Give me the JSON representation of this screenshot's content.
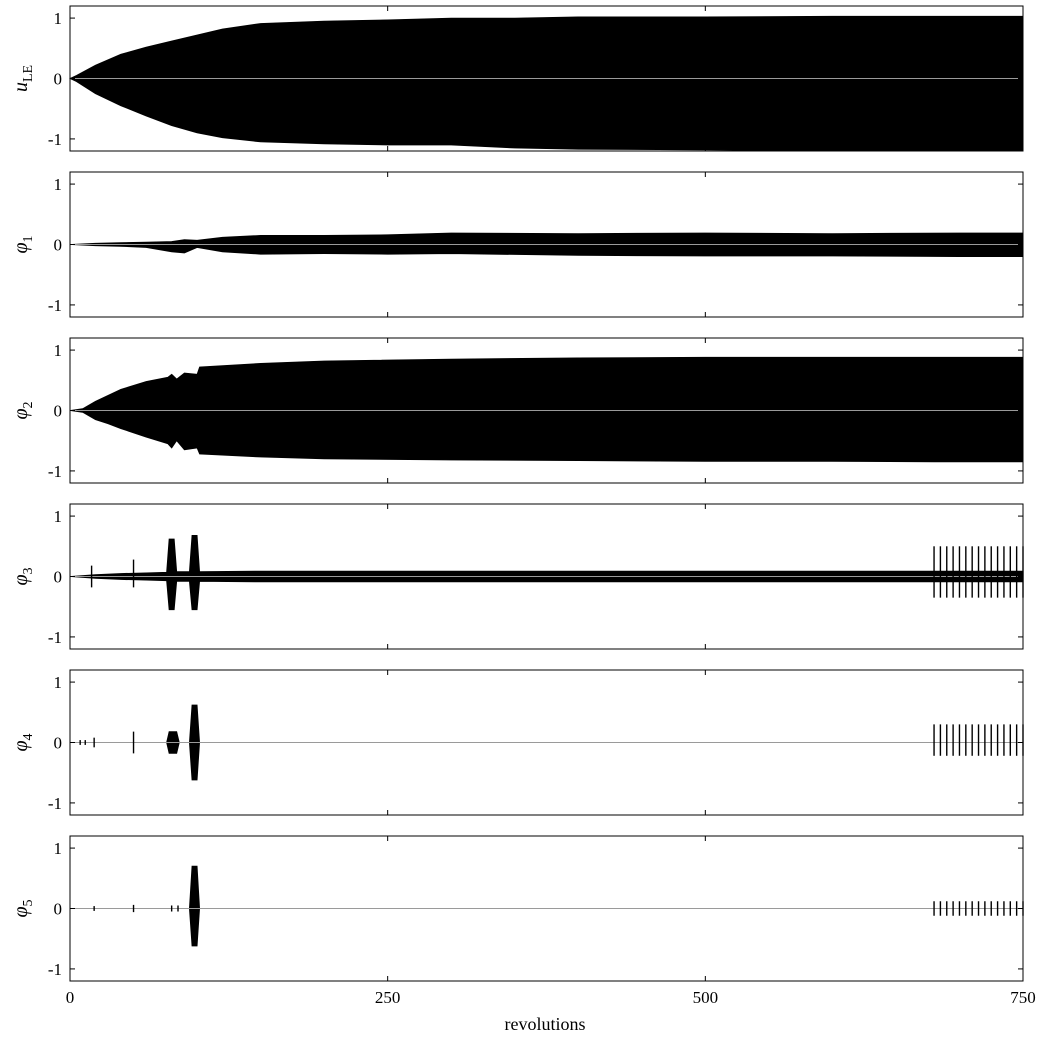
{
  "chart_data": {
    "type": "area",
    "xlabel": "revolutions",
    "xlim": [
      0,
      750
    ],
    "xticks": [
      0,
      250,
      500,
      750
    ],
    "ylim": [
      -1.2,
      1.2
    ],
    "yticks": [
      1,
      0,
      -1
    ],
    "ytick_labels": [
      "1",
      "0",
      "-1"
    ],
    "grid": false,
    "panels": [
      {
        "symbol": "u",
        "subscript": "LE",
        "color": "#000000",
        "x": [
          0,
          5,
          20,
          40,
          60,
          80,
          100,
          120,
          150,
          200,
          250,
          300,
          350,
          400,
          500,
          600,
          700,
          750
        ],
        "upper": [
          0,
          0.05,
          0.22,
          0.4,
          0.52,
          0.62,
          0.72,
          0.82,
          0.91,
          0.95,
          0.97,
          1.0,
          1.0,
          1.02,
          1.02,
          1.03,
          1.03,
          1.03
        ],
        "lower": [
          0,
          -0.05,
          -0.25,
          -0.45,
          -0.62,
          -0.78,
          -0.9,
          -0.98,
          -1.05,
          -1.08,
          -1.1,
          -1.1,
          -1.15,
          -1.17,
          -1.18,
          -1.2,
          -1.2,
          -1.2
        ],
        "markers": []
      },
      {
        "symbol": "φ",
        "subscript": "1",
        "color": "#000000",
        "x": [
          0,
          20,
          40,
          60,
          80,
          90,
          100,
          120,
          150,
          200,
          250,
          300,
          400,
          500,
          600,
          700,
          750
        ],
        "upper": [
          0,
          0.02,
          0.03,
          0.04,
          0.05,
          0.08,
          0.07,
          0.12,
          0.15,
          0.15,
          0.16,
          0.19,
          0.18,
          0.19,
          0.18,
          0.19,
          0.19
        ],
        "lower": [
          0,
          -0.02,
          -0.03,
          -0.05,
          -0.12,
          -0.14,
          -0.05,
          -0.12,
          -0.16,
          -0.15,
          -0.16,
          -0.15,
          -0.18,
          -0.19,
          -0.19,
          -0.2,
          -0.2
        ],
        "markers": []
      },
      {
        "symbol": "φ",
        "subscript": "2",
        "color": "#000000",
        "x": [
          0,
          10,
          20,
          30,
          40,
          60,
          77,
          80,
          84,
          90,
          100,
          102,
          150,
          200,
          300,
          400,
          500,
          600,
          680,
          750
        ],
        "upper": [
          0,
          0.03,
          0.15,
          0.25,
          0.35,
          0.48,
          0.55,
          0.6,
          0.52,
          0.62,
          0.6,
          0.72,
          0.78,
          0.82,
          0.85,
          0.87,
          0.88,
          0.88,
          0.88,
          0.88
        ],
        "lower": [
          0,
          -0.03,
          -0.15,
          -0.22,
          -0.3,
          -0.44,
          -0.55,
          -0.62,
          -0.5,
          -0.65,
          -0.62,
          -0.72,
          -0.77,
          -0.8,
          -0.82,
          -0.83,
          -0.84,
          -0.84,
          -0.85,
          -0.85
        ],
        "markers": []
      },
      {
        "symbol": "φ",
        "subscript": "3",
        "color": "#000000",
        "x": [
          0,
          20,
          40,
          60,
          76,
          78,
          82,
          84,
          94,
          96,
          100,
          102,
          150,
          200,
          300,
          400,
          500,
          600,
          700,
          750
        ],
        "upper": [
          0,
          0.03,
          0.05,
          0.06,
          0.07,
          0.62,
          0.62,
          0.08,
          0.08,
          0.68,
          0.68,
          0.08,
          0.09,
          0.09,
          0.09,
          0.09,
          0.09,
          0.09,
          0.09,
          0.09
        ],
        "lower": [
          0,
          -0.03,
          -0.05,
          -0.06,
          -0.07,
          -0.55,
          -0.55,
          -0.08,
          -0.08,
          -0.55,
          -0.55,
          -0.08,
          -0.09,
          -0.09,
          -0.09,
          -0.09,
          -0.09,
          -0.09,
          -0.09,
          -0.09
        ],
        "markers": [
          {
            "x": 17,
            "up": 0.18,
            "lo": -0.18
          },
          {
            "x": 50,
            "up": 0.28,
            "lo": -0.18
          },
          {
            "x": 680,
            "up": 0.5,
            "lo": -0.35
          },
          {
            "x": 685,
            "up": 0.5,
            "lo": -0.35
          },
          {
            "x": 690,
            "up": 0.5,
            "lo": -0.35
          },
          {
            "x": 695,
            "up": 0.5,
            "lo": -0.35
          },
          {
            "x": 700,
            "up": 0.5,
            "lo": -0.35
          },
          {
            "x": 705,
            "up": 0.5,
            "lo": -0.35
          },
          {
            "x": 710,
            "up": 0.5,
            "lo": -0.35
          },
          {
            "x": 715,
            "up": 0.5,
            "lo": -0.35
          },
          {
            "x": 720,
            "up": 0.5,
            "lo": -0.35
          },
          {
            "x": 725,
            "up": 0.5,
            "lo": -0.35
          },
          {
            "x": 730,
            "up": 0.5,
            "lo": -0.35
          },
          {
            "x": 735,
            "up": 0.5,
            "lo": -0.35
          },
          {
            "x": 740,
            "up": 0.5,
            "lo": -0.35
          },
          {
            "x": 745,
            "up": 0.5,
            "lo": -0.35
          },
          {
            "x": 750,
            "up": 0.5,
            "lo": -0.35
          }
        ]
      },
      {
        "symbol": "φ",
        "subscript": "4",
        "color": "#000000",
        "x": [
          0,
          76,
          78,
          84,
          86,
          94,
          96,
          100,
          102,
          750
        ],
        "upper": [
          0,
          0.0,
          0.18,
          0.18,
          0.0,
          0.0,
          0.62,
          0.62,
          0.0,
          0.0
        ],
        "lower": [
          0,
          0.0,
          -0.18,
          -0.18,
          0.0,
          0.0,
          -0.62,
          -0.62,
          0.0,
          0.0
        ],
        "markers": [
          {
            "x": 8,
            "up": 0.04,
            "lo": -0.04
          },
          {
            "x": 12,
            "up": 0.04,
            "lo": -0.04
          },
          {
            "x": 19,
            "up": 0.08,
            "lo": -0.08
          },
          {
            "x": 50,
            "up": 0.18,
            "lo": -0.18
          },
          {
            "x": 680,
            "up": 0.3,
            "lo": -0.22
          },
          {
            "x": 685,
            "up": 0.3,
            "lo": -0.22
          },
          {
            "x": 690,
            "up": 0.3,
            "lo": -0.22
          },
          {
            "x": 695,
            "up": 0.3,
            "lo": -0.22
          },
          {
            "x": 700,
            "up": 0.3,
            "lo": -0.22
          },
          {
            "x": 705,
            "up": 0.3,
            "lo": -0.22
          },
          {
            "x": 710,
            "up": 0.3,
            "lo": -0.22
          },
          {
            "x": 715,
            "up": 0.3,
            "lo": -0.22
          },
          {
            "x": 720,
            "up": 0.3,
            "lo": -0.22
          },
          {
            "x": 725,
            "up": 0.3,
            "lo": -0.22
          },
          {
            "x": 730,
            "up": 0.3,
            "lo": -0.22
          },
          {
            "x": 735,
            "up": 0.3,
            "lo": -0.22
          },
          {
            "x": 740,
            "up": 0.3,
            "lo": -0.22
          },
          {
            "x": 745,
            "up": 0.3,
            "lo": -0.22
          },
          {
            "x": 750,
            "up": 0.3,
            "lo": -0.22
          }
        ]
      },
      {
        "symbol": "φ",
        "subscript": "5",
        "color": "#000000",
        "x": [
          0,
          94,
          96,
          100,
          102,
          750
        ],
        "upper": [
          0,
          0.0,
          0.7,
          0.7,
          0.0,
          0.0
        ],
        "lower": [
          0,
          0.0,
          -0.62,
          -0.62,
          0.0,
          0.0
        ],
        "markers": [
          {
            "x": 19,
            "up": 0.04,
            "lo": -0.04
          },
          {
            "x": 50,
            "up": 0.06,
            "lo": -0.06
          },
          {
            "x": 80,
            "up": 0.05,
            "lo": -0.05
          },
          {
            "x": 85,
            "up": 0.05,
            "lo": -0.05
          },
          {
            "x": 680,
            "up": 0.12,
            "lo": -0.12
          },
          {
            "x": 685,
            "up": 0.12,
            "lo": -0.12
          },
          {
            "x": 690,
            "up": 0.12,
            "lo": -0.12
          },
          {
            "x": 695,
            "up": 0.12,
            "lo": -0.12
          },
          {
            "x": 700,
            "up": 0.12,
            "lo": -0.12
          },
          {
            "x": 705,
            "up": 0.12,
            "lo": -0.12
          },
          {
            "x": 710,
            "up": 0.12,
            "lo": -0.12
          },
          {
            "x": 715,
            "up": 0.12,
            "lo": -0.12
          },
          {
            "x": 720,
            "up": 0.12,
            "lo": -0.12
          },
          {
            "x": 725,
            "up": 0.12,
            "lo": -0.12
          },
          {
            "x": 730,
            "up": 0.12,
            "lo": -0.12
          },
          {
            "x": 735,
            "up": 0.12,
            "lo": -0.12
          },
          {
            "x": 740,
            "up": 0.12,
            "lo": -0.12
          },
          {
            "x": 745,
            "up": 0.12,
            "lo": -0.12
          },
          {
            "x": 750,
            "up": 0.12,
            "lo": -0.12
          }
        ]
      }
    ]
  }
}
